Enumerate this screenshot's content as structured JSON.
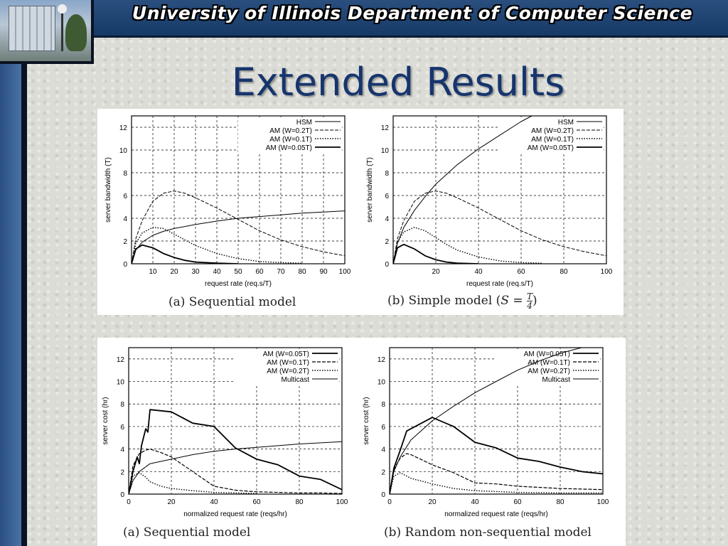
{
  "header": {
    "title": "University of Illinois Department of Computer Science"
  },
  "slide": {
    "title": "Extended Results"
  },
  "colors": {
    "header_bg": "#1f4575",
    "title_color": "#16356e"
  },
  "chart_data": [
    {
      "type": "line",
      "caption": "(a) Sequential model",
      "xlabel": "request rate (req.s/T)",
      "ylabel": "server bandwidth (T)",
      "xlim": [
        0,
        100
      ],
      "ylim": [
        0,
        13
      ],
      "xticks": [
        10,
        20,
        30,
        40,
        50,
        60,
        70,
        80,
        90,
        100
      ],
      "yticks": [
        0,
        2,
        4,
        6,
        8,
        10,
        12
      ],
      "grid": true,
      "legend_position": "top-right",
      "series": [
        {
          "name": "HSM",
          "style": "solid",
          "width": 1.0,
          "x": [
            0,
            2,
            5,
            10,
            15,
            20,
            30,
            40,
            50,
            60,
            70,
            80,
            90,
            100
          ],
          "y": [
            0,
            1.2,
            1.9,
            2.5,
            2.85,
            3.1,
            3.45,
            3.75,
            4.0,
            4.15,
            4.3,
            4.45,
            4.55,
            4.65
          ]
        },
        {
          "name": "AM (W=0.2T)",
          "style": "dash",
          "width": 1.0,
          "x": [
            0,
            2,
            5,
            10,
            15,
            20,
            25,
            30,
            40,
            50,
            60,
            70,
            80,
            90,
            100
          ],
          "y": [
            0,
            2.2,
            3.8,
            5.5,
            6.2,
            6.4,
            6.2,
            5.8,
            4.9,
            3.9,
            2.9,
            2.1,
            1.5,
            1.05,
            0.7
          ]
        },
        {
          "name": "AM (W=0.1T)",
          "style": "dot",
          "width": 1.4,
          "x": [
            0,
            2,
            5,
            10,
            15,
            20,
            25,
            30,
            40,
            50,
            60,
            70,
            80
          ],
          "y": [
            0,
            1.8,
            2.7,
            3.2,
            3.1,
            2.6,
            2.1,
            1.6,
            0.9,
            0.45,
            0.2,
            0.1,
            0.05
          ]
        },
        {
          "name": "AM (W=0.05T)",
          "style": "solid",
          "width": 1.8,
          "x": [
            0,
            2,
            5,
            10,
            15,
            20,
            25,
            30,
            40,
            50
          ],
          "y": [
            0,
            1.3,
            1.65,
            1.4,
            0.9,
            0.55,
            0.3,
            0.15,
            0.05,
            0.0
          ]
        }
      ]
    },
    {
      "type": "line",
      "caption": "(b) Simple model (",
      "caption_math": "S =",
      "caption_frac_num": "T",
      "caption_frac_den": "4",
      "caption_end": ")",
      "xlabel": "request rate (req.s/T)",
      "ylabel": "server bandwidth (T)",
      "xlim": [
        0,
        100
      ],
      "ylim": [
        0,
        13
      ],
      "xticks": [
        20,
        40,
        60,
        80,
        100
      ],
      "yticks": [
        0,
        2,
        4,
        6,
        8,
        10,
        12
      ],
      "grid": true,
      "legend_position": "top-right",
      "series": [
        {
          "name": "HSM",
          "style": "solid",
          "width": 1.0,
          "x": [
            0,
            2,
            5,
            10,
            15,
            20,
            30,
            40,
            50,
            60,
            65
          ],
          "y": [
            0,
            1.8,
            3.2,
            4.7,
            5.9,
            7.0,
            8.7,
            10.1,
            11.3,
            12.5,
            13.0
          ]
        },
        {
          "name": "AM (W=0.2T)",
          "style": "dash",
          "width": 1.0,
          "x": [
            0,
            2,
            5,
            10,
            15,
            20,
            25,
            30,
            40,
            50,
            60,
            70,
            80,
            90,
            100
          ],
          "y": [
            0,
            2.2,
            3.8,
            5.5,
            6.2,
            6.4,
            6.2,
            5.8,
            4.9,
            3.9,
            2.9,
            2.1,
            1.5,
            1.05,
            0.7
          ]
        },
        {
          "name": "AM (W=0.1T)",
          "style": "dot",
          "width": 1.4,
          "x": [
            0,
            2,
            5,
            10,
            15,
            20,
            25,
            30,
            40,
            50,
            60,
            70
          ],
          "y": [
            0,
            1.9,
            2.8,
            3.2,
            2.9,
            2.3,
            1.7,
            1.2,
            0.6,
            0.25,
            0.1,
            0.05
          ]
        },
        {
          "name": "AM (W=0.05T)",
          "style": "solid",
          "width": 1.8,
          "x": [
            0,
            2,
            5,
            10,
            15,
            20,
            25,
            30,
            40
          ],
          "y": [
            0,
            1.4,
            1.7,
            1.3,
            0.7,
            0.35,
            0.15,
            0.05,
            0.0
          ]
        }
      ]
    },
    {
      "type": "line",
      "caption": "(a) Sequential model",
      "xlabel": "normalized request rate (reqs/hr)",
      "ylabel": "server cost (hr)",
      "xlim": [
        0,
        100
      ],
      "ylim": [
        0,
        13
      ],
      "xticks": [
        0,
        20,
        40,
        60,
        80,
        100
      ],
      "yticks": [
        0,
        2,
        4,
        6,
        8,
        10,
        12
      ],
      "grid": true,
      "legend_position": "top-right",
      "series": [
        {
          "name": "AM (W=0.05T)",
          "style": "solid",
          "width": 1.8,
          "x": [
            0,
            2,
            4,
            5,
            6,
            8,
            9,
            10,
            20,
            30,
            40,
            50,
            60,
            70,
            80,
            90,
            100
          ],
          "y": [
            0,
            2.0,
            3.3,
            2.7,
            4.3,
            5.8,
            5.5,
            7.5,
            7.3,
            6.3,
            6.0,
            4.1,
            3.1,
            2.6,
            1.6,
            1.3,
            0.4
          ]
        },
        {
          "name": "AM (W=0.1T)",
          "style": "dash",
          "width": 1.2,
          "x": [
            0,
            2,
            5,
            8,
            10,
            15,
            20,
            30,
            40,
            50,
            60,
            70,
            80,
            90,
            100
          ],
          "y": [
            0,
            2.5,
            3.6,
            3.9,
            4.0,
            3.7,
            3.3,
            2.0,
            0.7,
            0.35,
            0.2,
            0.15,
            0.1,
            0.1,
            0.05
          ]
        },
        {
          "name": "AM (W=0.2T)",
          "style": "dot",
          "width": 1.4,
          "x": [
            0,
            2,
            5,
            8,
            10,
            15,
            20,
            30,
            40,
            50,
            60
          ],
          "y": [
            0,
            1.6,
            1.9,
            1.5,
            1.1,
            0.7,
            0.5,
            0.3,
            0.15,
            0.1,
            0.05
          ]
        },
        {
          "name": "Multicast",
          "style": "solid",
          "width": 1.0,
          "x": [
            0,
            2,
            5,
            10,
            20,
            30,
            40,
            50,
            60,
            70,
            80,
            90,
            100
          ],
          "y": [
            0,
            1.2,
            2.0,
            2.7,
            3.1,
            3.5,
            3.8,
            4.0,
            4.15,
            4.3,
            4.45,
            4.55,
            4.65
          ]
        }
      ]
    },
    {
      "type": "line",
      "caption": "(b) Random non-sequential model",
      "xlabel": "normalized request rate (reqs/hr)",
      "ylabel": "server cost (hr)",
      "xlim": [
        0,
        100
      ],
      "ylim": [
        0,
        13
      ],
      "xticks": [
        0,
        20,
        40,
        60,
        80,
        100
      ],
      "yticks": [
        0,
        2,
        4,
        6,
        8,
        10,
        12
      ],
      "grid": true,
      "legend_position": "top-right",
      "series": [
        {
          "name": "AM (W=0.05T)",
          "style": "solid",
          "width": 1.8,
          "x": [
            0,
            2,
            5,
            8,
            10,
            20,
            30,
            40,
            50,
            60,
            70,
            80,
            90,
            100
          ],
          "y": [
            0,
            2.3,
            3.9,
            5.6,
            5.8,
            6.8,
            6.0,
            4.6,
            4.1,
            3.2,
            2.9,
            2.4,
            2.0,
            1.8
          ]
        },
        {
          "name": "AM (W=0.1T)",
          "style": "dash",
          "width": 1.2,
          "x": [
            0,
            2,
            5,
            8,
            10,
            20,
            30,
            40,
            50,
            60,
            70,
            80,
            90,
            100
          ],
          "y": [
            0,
            2.2,
            3.2,
            3.6,
            3.5,
            2.6,
            1.9,
            1.0,
            0.9,
            0.7,
            0.6,
            0.5,
            0.45,
            0.4
          ]
        },
        {
          "name": "AM (W=0.2T)",
          "style": "dot",
          "width": 1.4,
          "x": [
            0,
            2,
            5,
            10,
            20,
            30,
            40,
            60,
            80,
            100
          ],
          "y": [
            0,
            1.6,
            1.9,
            1.4,
            0.9,
            0.5,
            0.3,
            0.15,
            0.1,
            0.1
          ]
        },
        {
          "name": "Multicast",
          "style": "solid",
          "width": 1.0,
          "x": [
            0,
            2,
            5,
            10,
            20,
            30,
            40,
            50,
            60,
            70,
            80,
            90,
            100
          ],
          "y": [
            0,
            2.0,
            3.3,
            4.8,
            6.5,
            7.8,
            9.0,
            10.0,
            11.0,
            11.8,
            12.5,
            13.0,
            13.5
          ]
        }
      ]
    }
  ]
}
